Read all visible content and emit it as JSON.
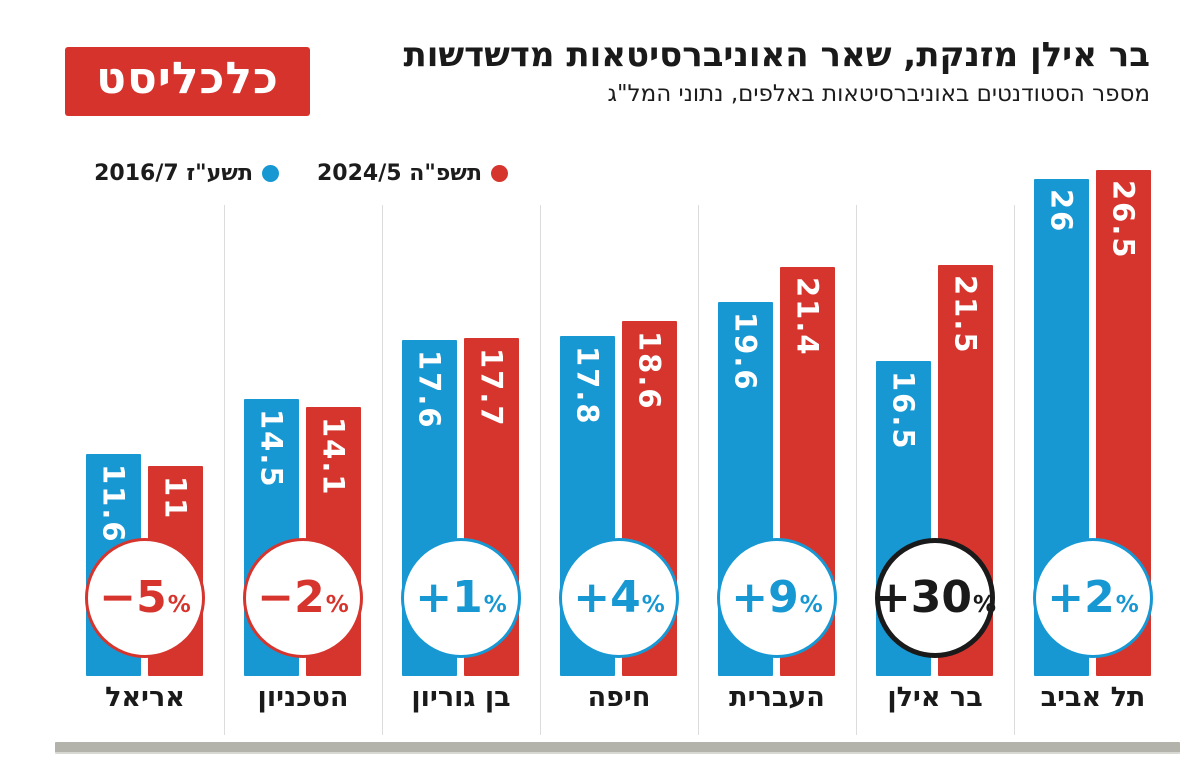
{
  "logo": {
    "text": "כלכליסט",
    "bg_color": "#d6332c"
  },
  "header": {
    "title": "בר אילן מזנקת, שאר האוניברסיטאות מדשדשות",
    "subtitle": "מספר הסטודנטים באוניברסיטאות באלפים, נתוני המל\"ג"
  },
  "legend": [
    {
      "label": "תשפ\"ה 2024/5",
      "color": "#d6352e"
    },
    {
      "label": "תשע\"ז 2016/7",
      "color": "#1898d3"
    }
  ],
  "colors": {
    "blue": "#1898d3",
    "red": "#d6352e",
    "black": "#1a1a1a",
    "divider": "#dcdcdc",
    "bottom_strip": "#b3b3ac"
  },
  "chart_data": {
    "type": "bar",
    "direction": "rtl",
    "title": "בר אילן מזנקת, שאר האוניברסיטאות מדשדשות",
    "subtitle": "מספר הסטודנטים באוניברסיטאות באלפים, נתוני המל\"ג",
    "units": "אלפים",
    "legend_position": "top-left",
    "grid": false,
    "ylim": [
      0,
      27
    ],
    "categories_screen_order": "left-to-right",
    "categories": [
      "אריאל",
      "הטכניון",
      "בן גוריון",
      "חיפה",
      "העברית",
      "בר אילן",
      "תל אביב"
    ],
    "series": [
      {
        "name": "תשע\"ז 2016/7",
        "color": "#1898d3",
        "values": [
          11.6,
          14.5,
          17.6,
          17.8,
          19.6,
          16.5,
          26
        ]
      },
      {
        "name": "תשפ\"ה 2024/5",
        "color": "#d6352e",
        "values": [
          11,
          14.1,
          17.7,
          18.6,
          21.4,
          21.5,
          26.5
        ]
      }
    ],
    "value_labels": {
      "2016": [
        "11.6",
        "14.5",
        "17.6",
        "17.8",
        "19.6",
        "16.5",
        "26"
      ],
      "2024": [
        "11",
        "14.1",
        "17.7",
        "18.6",
        "21.4",
        "21.5",
        "26.5"
      ]
    },
    "change_percent": [
      "−5",
      "−2",
      "+1",
      "+4",
      "+9",
      "+30",
      "+2"
    ],
    "change_suffix": "%",
    "change_badge_colors": [
      "#d6352e",
      "#d6352e",
      "#1898d3",
      "#1898d3",
      "#1898d3",
      "#1a1a1a",
      "#1898d3"
    ],
    "highlighted_category": "בר אילן"
  }
}
